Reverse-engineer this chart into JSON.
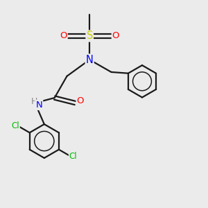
{
  "bg_color": "#ebebeb",
  "bond_color": "#1a1a1a",
  "atom_colors": {
    "N": "#0000ff",
    "O": "#ff0000",
    "S": "#cccc00",
    "Cl": "#00bb00",
    "H": "#888888",
    "C": "#1a1a1a"
  },
  "bond_lw": 1.6,
  "font_size": 9.5
}
